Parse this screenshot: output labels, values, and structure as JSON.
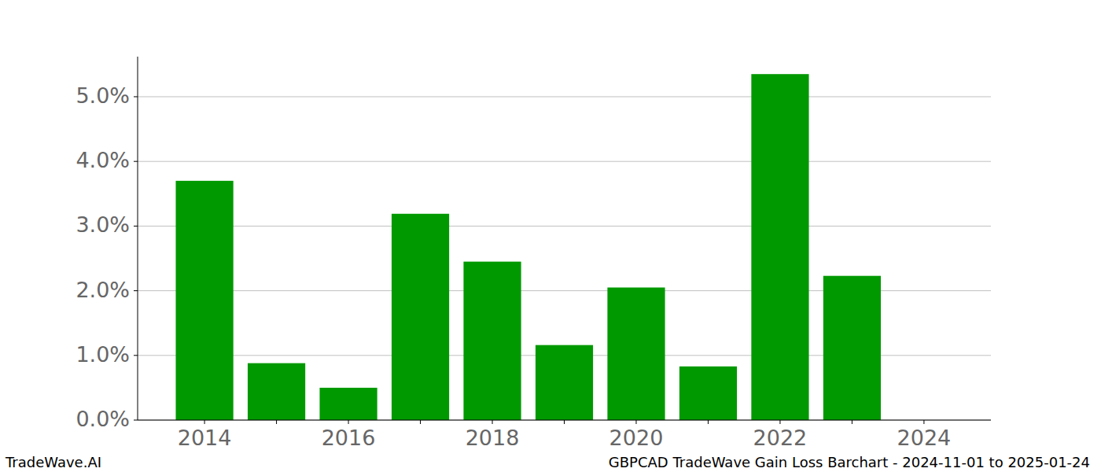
{
  "chart_data": {
    "type": "bar",
    "title": "GBPCAD TradeWave Gain Loss Barchart - 2024-11-01 to 2025-01-24",
    "annotations": [
      "TradeWave.AI"
    ],
    "categories": [
      "2014",
      null,
      "2016",
      null,
      "2018",
      null,
      "2020",
      null,
      "2022",
      null,
      "2024"
    ],
    "values": [
      3.7,
      0.88,
      0.5,
      3.19,
      2.45,
      1.16,
      2.05,
      0.83,
      5.35,
      2.23,
      0
    ],
    "color": "#009900",
    "ylim": [
      0,
      5.62
    ],
    "yticks": [
      {
        "value": 0,
        "label": "0.0%"
      },
      {
        "value": 1,
        "label": "1.0%"
      },
      {
        "value": 2,
        "label": "2.0%"
      },
      {
        "value": 3,
        "label": "3.0%"
      },
      {
        "value": 4,
        "label": "4.0%"
      },
      {
        "value": 5,
        "label": "5.0%"
      }
    ],
    "grid": true
  }
}
